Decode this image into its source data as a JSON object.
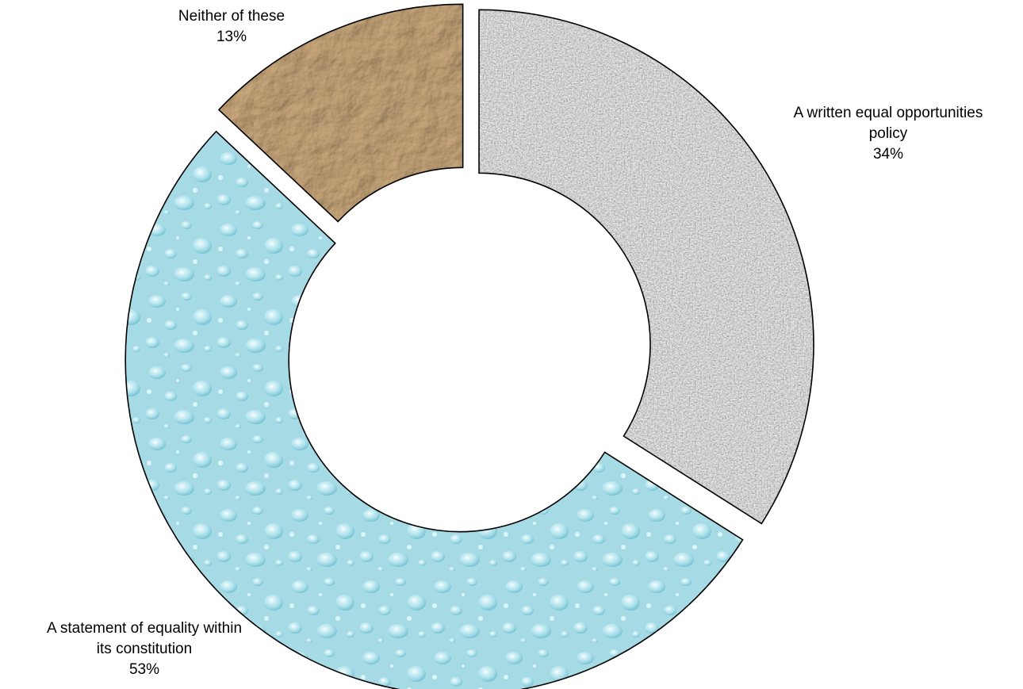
{
  "chart_data": {
    "type": "pie",
    "variant": "donut",
    "exploded": true,
    "title": "",
    "slices": [
      {
        "label_lines": [
          "A written equal opportunities",
          "policy"
        ],
        "value": 34,
        "value_label": "34%",
        "fill": "granite",
        "color": "#b8b8b8"
      },
      {
        "label_lines": [
          "A statement of  equality within",
          "its constitution"
        ],
        "value": 53,
        "value_label": "53%",
        "fill": "water-droplets",
        "color": "#a9dfe9"
      },
      {
        "label_lines": [
          "Neither of these"
        ],
        "value": 13,
        "value_label": "13%",
        "fill": "crumpled-paper",
        "color": "#b08a5c"
      }
    ],
    "legend": "none"
  }
}
